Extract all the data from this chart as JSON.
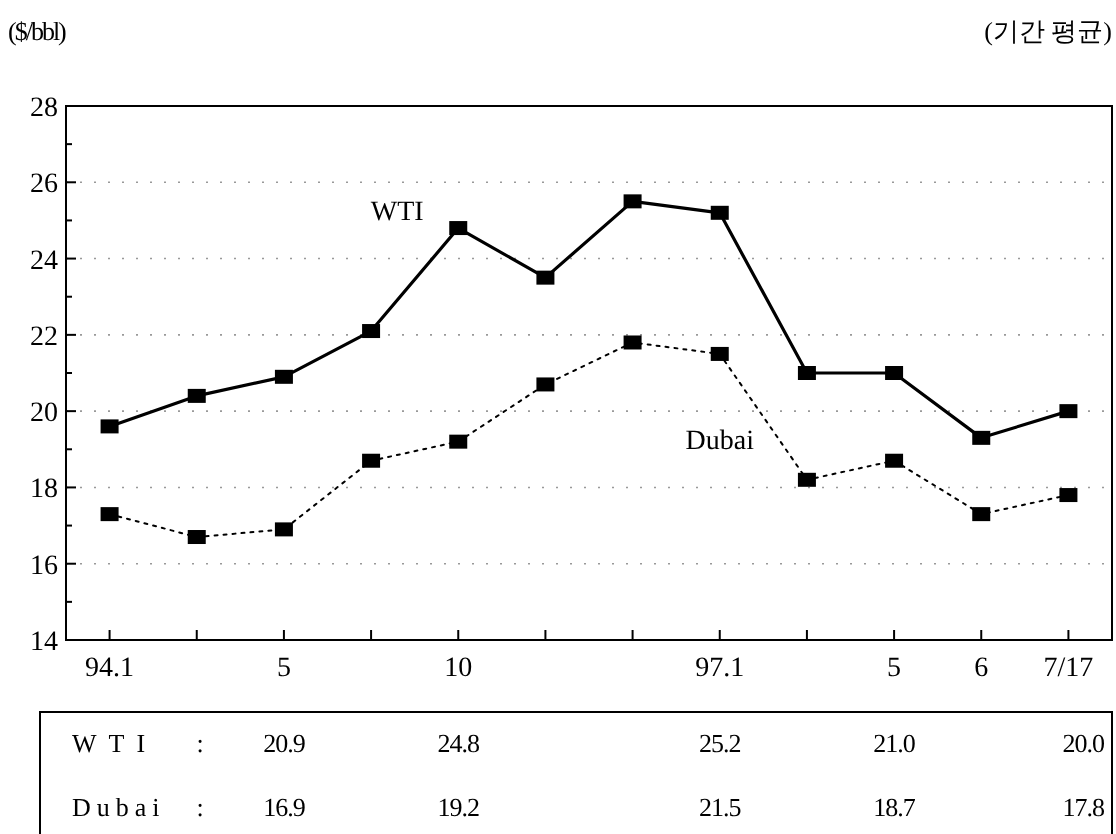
{
  "chart_data": {
    "type": "line",
    "ylabel": "($/bbl)",
    "subtitle": "(기간 평균)",
    "categories": [
      "94.1",
      null,
      "5",
      null,
      "10",
      null,
      null,
      "97.1",
      null,
      "5",
      "6",
      "7/17"
    ],
    "series": [
      {
        "name": "WTI",
        "color": "#000000",
        "line_style": "solid",
        "values": [
          19.6,
          20.4,
          20.9,
          22.1,
          24.8,
          23.5,
          25.5,
          25.2,
          21.0,
          21.0,
          19.3,
          20.0
        ],
        "value_labels": [
          null,
          null,
          "20.9",
          null,
          "24.8",
          null,
          null,
          "25.2",
          null,
          "21.0",
          null,
          "20.0"
        ]
      },
      {
        "name": "Dubai",
        "color": "#000000",
        "line_style": "dotted",
        "values": [
          17.3,
          16.7,
          16.9,
          18.7,
          19.2,
          20.7,
          21.8,
          21.5,
          18.2,
          18.7,
          17.3,
          17.8
        ],
        "value_labels": [
          null,
          null,
          "16.9",
          null,
          "19.2",
          null,
          null,
          "21.5",
          null,
          "18.7",
          null,
          "17.8"
        ]
      }
    ],
    "ylim": [
      14,
      28
    ],
    "yticks": [
      14,
      {
        "value": 15,
        "label": null
      },
      16,
      {
        "value": 17,
        "label": null
      },
      18,
      {
        "value": 19,
        "label": null
      },
      20,
      {
        "value": 21,
        "label": null
      },
      22,
      {
        "value": 23,
        "label": null
      },
      24,
      {
        "value": 25,
        "label": null
      },
      26,
      {
        "value": 27,
        "label": null
      },
      28
    ],
    "grid": "y",
    "marker": "square",
    "legend": false,
    "annotations": [
      ":",
      ":"
    ]
  }
}
